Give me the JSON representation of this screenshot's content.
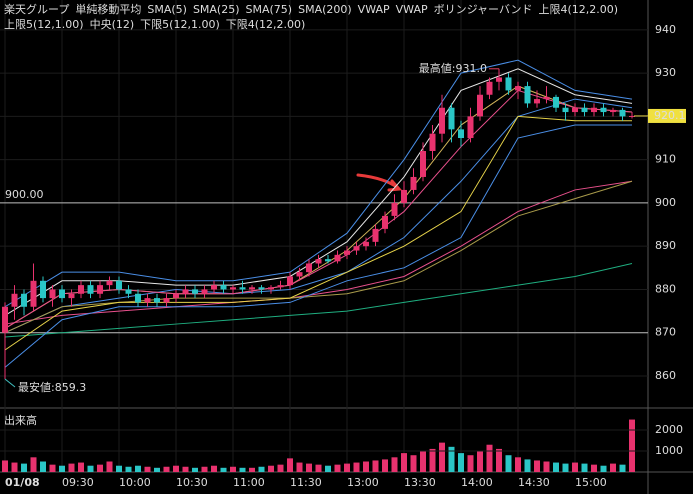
{
  "chart_data": {
    "type": "candlestick",
    "title": "楽天グループ",
    "ylim": [
      852.6,
      946.9
    ],
    "yticks": [
      860,
      870,
      880,
      890,
      900,
      910,
      920,
      930,
      940
    ],
    "xticks": [
      {
        "value": 0,
        "label": "01/08"
      },
      {
        "value": 6,
        "label": "09:30"
      },
      {
        "value": 12,
        "label": "10:00"
      },
      {
        "value": 18,
        "label": "10:30"
      },
      {
        "value": 24,
        "label": "11:00"
      },
      {
        "value": 30,
        "label": "11:30"
      },
      {
        "value": 36,
        "label": "13:00"
      },
      {
        "value": 42,
        "label": "13:30"
      },
      {
        "value": 48,
        "label": "14:00"
      },
      {
        "value": 54,
        "label": "14:30"
      },
      {
        "value": 60,
        "label": "15:00"
      }
    ],
    "up_color": "#e8326e",
    "down_color": "#2ac6c6",
    "open": [
      870,
      876,
      879,
      876,
      882,
      878,
      880,
      878,
      879,
      881,
      879,
      881,
      882,
      880,
      879,
      877,
      878,
      877,
      878,
      879,
      880,
      879,
      880,
      881,
      880,
      880.5,
      880,
      880.5,
      880,
      880.5,
      881,
      883,
      884,
      886,
      887,
      886.5,
      888,
      889,
      890,
      891,
      894,
      897,
      900,
      903,
      906,
      912,
      916,
      922,
      917,
      915,
      920,
      925,
      928,
      929,
      926,
      927,
      923,
      924,
      924.5,
      922,
      921,
      922,
      921,
      922,
      921,
      921.5,
      920
    ],
    "high": [
      877,
      881,
      880,
      886,
      883,
      881,
      881,
      880,
      882,
      882,
      882,
      883,
      883,
      881,
      880,
      879,
      879,
      879,
      880,
      881,
      881,
      881,
      882,
      882,
      881,
      882,
      881,
      881,
      881,
      882,
      884,
      885,
      887,
      888,
      888,
      889,
      890,
      891,
      892,
      895,
      898,
      902,
      905,
      908,
      914,
      918,
      925,
      923,
      919,
      922,
      927,
      929,
      931,
      930,
      928,
      928,
      926,
      927,
      925,
      923,
      923,
      923,
      923,
      923,
      922,
      922,
      921
    ],
    "low": [
      859.3,
      873,
      874,
      875,
      877,
      876,
      877,
      876,
      878,
      878,
      878,
      880,
      879,
      878,
      876,
      876,
      876,
      876,
      877,
      878,
      878,
      878,
      879,
      879,
      879,
      879,
      879,
      879,
      879,
      880,
      880,
      882,
      883,
      885,
      886,
      886,
      887,
      888,
      889,
      890,
      893,
      896,
      899,
      902,
      905,
      910,
      914,
      914,
      913,
      914,
      919,
      924,
      926,
      925,
      924,
      922,
      922,
      923,
      921,
      919,
      920,
      920,
      920,
      920,
      920,
      919,
      919.5
    ],
    "close": [
      876,
      879,
      876,
      882,
      878,
      880,
      878,
      879,
      881,
      879,
      881,
      882,
      880,
      879,
      877,
      878,
      877,
      878,
      879,
      880,
      879,
      880,
      881,
      880,
      880.5,
      880,
      880.5,
      880,
      880.5,
      881,
      883,
      884,
      886,
      887,
      886.5,
      888,
      889,
      890,
      891,
      894,
      897,
      900,
      903,
      906,
      912,
      916,
      922,
      917,
      915,
      920,
      925,
      928,
      929,
      926,
      927,
      923,
      924,
      924.5,
      922,
      921,
      922,
      921,
      922,
      921,
      921.5,
      920,
      920.1
    ],
    "last": 920.1,
    "hlines": [
      {
        "value": 900,
        "label": "900.00"
      },
      {
        "value": 870
      }
    ],
    "max": {
      "index": 52,
      "value": 931.0,
      "label": "最高値:931.0"
    },
    "min": {
      "index": 0,
      "value": 859.3,
      "label": "最安値:859.3"
    },
    "overlay_x": [
      0,
      6,
      12,
      18,
      24,
      30,
      36,
      42,
      48,
      54,
      60,
      66
    ],
    "groups": [
      {
        "title": "単純移動平均",
        "series": [
          {
            "name": "SMA(5)",
            "color": "#d2b45a",
            "values": [
              871,
              879,
              880,
              879,
              879,
              881,
              889,
              901,
              918,
              927,
              922,
              921
            ]
          },
          {
            "name": "SMA(25)",
            "color": "#4a8ee6",
            "values": [
              870,
              876,
              878,
              880,
              879,
              880,
              884,
              892,
              905,
              920,
              924,
              922
            ]
          },
          {
            "name": "SMA(75)",
            "color": "#e8508c",
            "values": [
              872,
              874,
              875,
              876,
              877,
              878,
              880,
              883,
              890,
              898,
              903,
              905
            ]
          },
          {
            "name": "SMA(200)",
            "color": "#1fae80",
            "values": [
              869,
              870,
              871,
              872,
              873,
              874,
              875,
              877,
              879,
              881,
              883,
              886
            ]
          }
        ]
      },
      {
        "title": "VWAP",
        "series": [
          {
            "name": "VWAP",
            "color": "#a89a4a",
            "values": [
              870,
              876,
              877,
              878,
              878,
              878,
              879,
              882,
              889,
              897,
              901,
              905
            ]
          }
        ]
      },
      {
        "title": "ボリンジャーバンド",
        "series": [
          {
            "name": "上限4(12,2.00)",
            "color": "#4a8ee6",
            "values": [
              876,
              884,
              884,
              882,
              882,
              884,
              893,
              910,
              930,
              933,
              926,
              924
            ]
          },
          {
            "name": "上限5(12,1.00)",
            "color": "#e6e6e6",
            "values": [
              874,
              882,
              882,
              881,
              881,
              883,
              891,
              906,
              926,
              931,
              925,
              923
            ]
          },
          {
            "name": "中央(12)",
            "color": "#e8508c",
            "values": [
              871,
              879,
              880,
              879,
              879,
              881,
              888,
              898,
              913,
              926,
              922,
              921
            ]
          },
          {
            "name": "下限5(12,1.00)",
            "color": "#e6d34a",
            "values": [
              866,
              875,
              877,
              877,
              877,
              878,
              884,
              890,
              898,
              920,
              919,
              919
            ]
          },
          {
            "name": "下限4(12,2.00)",
            "color": "#4a8ee6",
            "values": [
              862,
              873,
              876,
              876,
              876,
              877,
              882,
              885,
              892,
              915,
              918,
              918
            ]
          }
        ]
      }
    ],
    "volume": {
      "title": "出来高",
      "ylim": [
        0,
        2860
      ],
      "yticks": [
        1000,
        2000
      ],
      "values": [
        550,
        450,
        400,
        700,
        500,
        350,
        300,
        400,
        450,
        300,
        350,
        500,
        300,
        250,
        300,
        250,
        200,
        250,
        300,
        250,
        200,
        250,
        300,
        200,
        250,
        200,
        200,
        250,
        300,
        350,
        650,
        450,
        400,
        350,
        300,
        350,
        400,
        450,
        500,
        550,
        600,
        700,
        900,
        800,
        1000,
        1100,
        1400,
        1200,
        900,
        800,
        1000,
        1300,
        1100,
        800,
        700,
        600,
        550,
        500,
        450,
        400,
        450,
        400,
        350,
        300,
        400,
        350,
        2500
      ]
    }
  }
}
